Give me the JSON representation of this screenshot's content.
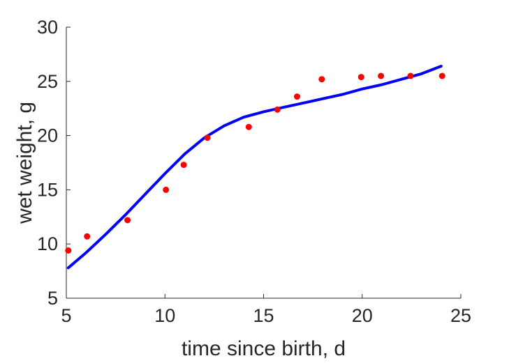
{
  "chart_data": {
    "type": "scatter",
    "title": "",
    "xlabel": "time since birth, d",
    "ylabel": "wet weight, g",
    "xlim": [
      5,
      25
    ],
    "ylim": [
      5,
      30
    ],
    "xticks": [
      "5",
      "10",
      "15",
      "20",
      "25"
    ],
    "yticks": [
      "5",
      "10",
      "15",
      "20",
      "25",
      "30"
    ],
    "grid": false,
    "legend": "none",
    "series": [
      {
        "kind": "scatter",
        "color": "#ff0000",
        "x": [
          5.1,
          6.05,
          8.1,
          10.05,
          10.95,
          12.15,
          14.25,
          15.7,
          16.7,
          17.95,
          19.95,
          20.95,
          22.45,
          24.05
        ],
        "y": [
          9.4,
          10.7,
          12.2,
          15.0,
          17.3,
          19.8,
          20.8,
          22.4,
          23.6,
          25.2,
          25.4,
          25.5,
          25.5,
          25.5
        ]
      },
      {
        "kind": "line",
        "color": "#0000ff",
        "x": [
          5.1,
          6.0,
          7.0,
          8.0,
          9.0,
          10.0,
          11.0,
          12.0,
          13.0,
          14.0,
          15.0,
          16.0,
          17.0,
          18.0,
          19.0,
          20.0,
          21.0,
          22.0,
          23.0,
          24.0
        ],
        "y": [
          7.8,
          9.2,
          10.9,
          12.7,
          14.6,
          16.5,
          18.3,
          19.8,
          20.9,
          21.7,
          22.2,
          22.6,
          23.0,
          23.4,
          23.8,
          24.3,
          24.7,
          25.2,
          25.7,
          26.4
        ]
      }
    ]
  }
}
